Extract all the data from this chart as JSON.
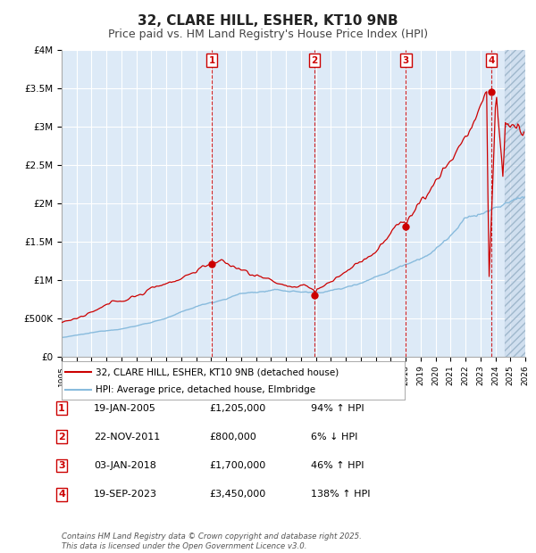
{
  "title": "32, CLARE HILL, ESHER, KT10 9NB",
  "subtitle": "Price paid vs. HM Land Registry's House Price Index (HPI)",
  "title_fontsize": 11,
  "subtitle_fontsize": 9,
  "background_color": "#ddeaf7",
  "red_line_color": "#cc0000",
  "blue_line_color": "#88bbdd",
  "grid_color": "#ffffff",
  "x_start_year": 1995,
  "x_end_year": 2026,
  "y_min": 0,
  "y_max": 4000000,
  "y_ticks": [
    0,
    500000,
    1000000,
    1500000,
    2000000,
    2500000,
    3000000,
    3500000,
    4000000
  ],
  "y_tick_labels": [
    "£0",
    "£500K",
    "£1M",
    "£1.5M",
    "£2M",
    "£2.5M",
    "£3M",
    "£3.5M",
    "£4M"
  ],
  "sale_markers": [
    {
      "label": "1",
      "year": 2005.05,
      "price": 1205000
    },
    {
      "label": "2",
      "year": 2011.9,
      "price": 800000
    },
    {
      "label": "3",
      "year": 2018.02,
      "price": 1700000
    },
    {
      "label": "4",
      "year": 2023.72,
      "price": 3450000
    }
  ],
  "legend_red_label": "32, CLARE HILL, ESHER, KT10 9NB (detached house)",
  "legend_blue_label": "HPI: Average price, detached house, Elmbridge",
  "footer": "Contains HM Land Registry data © Crown copyright and database right 2025.\nThis data is licensed under the Open Government Licence v3.0.",
  "table_rows": [
    {
      "num": "1",
      "date": "19-JAN-2005",
      "price": "£1,205,000",
      "hpi": "94% ↑ HPI"
    },
    {
      "num": "2",
      "date": "22-NOV-2011",
      "price": "£800,000",
      "hpi": "6% ↓ HPI"
    },
    {
      "num": "3",
      "date": "03-JAN-2018",
      "price": "£1,700,000",
      "hpi": "46% ↑ HPI"
    },
    {
      "num": "4",
      "date": "19-SEP-2023",
      "price": "£3,450,000",
      "hpi": "138% ↑ HPI"
    }
  ]
}
